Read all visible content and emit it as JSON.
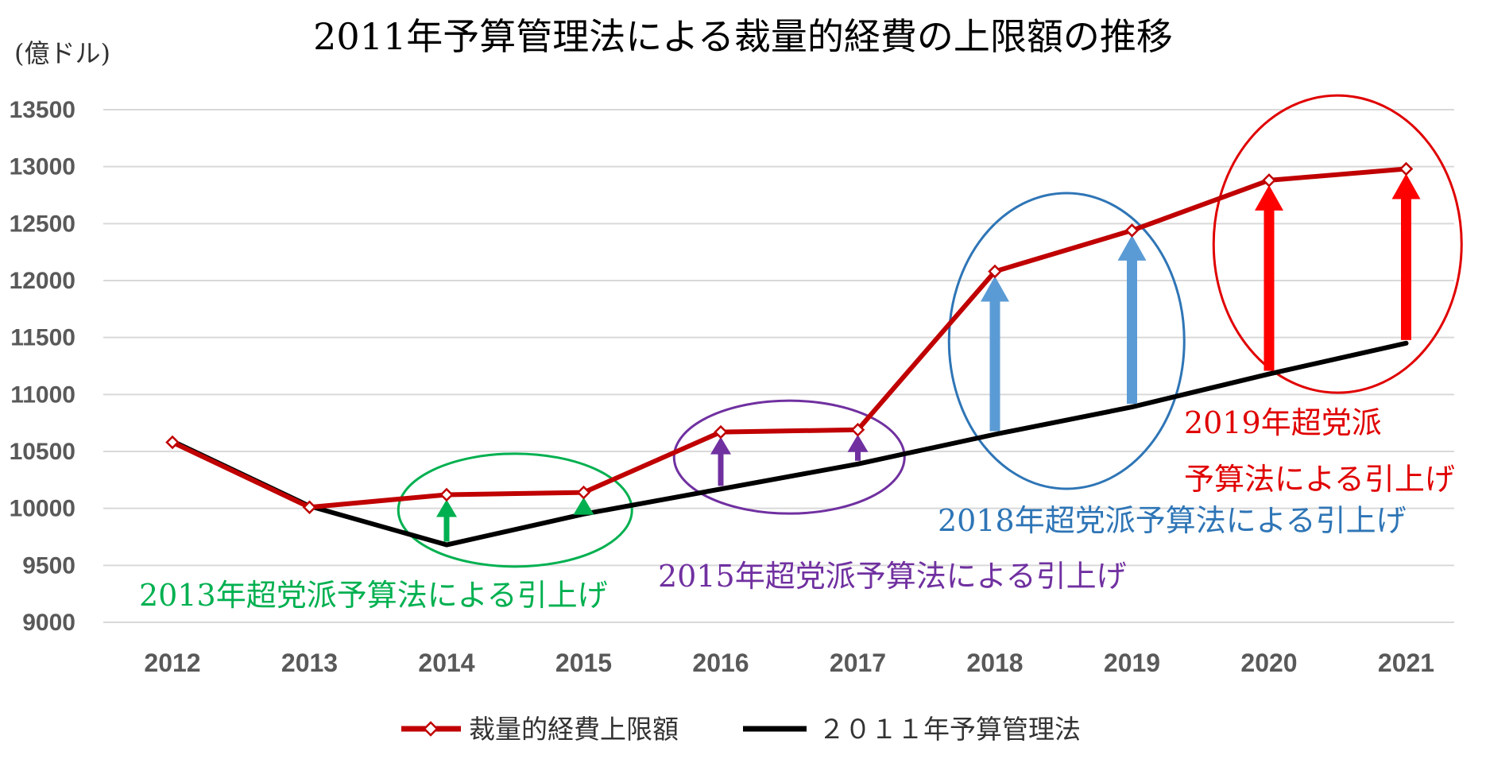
{
  "chart_data": {
    "type": "line",
    "title": "2011年予算管理法による裁量的経費の上限額の推移",
    "ylabel": "(億ドル)",
    "xlabel": "",
    "categories": [
      "2012",
      "2013",
      "2014",
      "2015",
      "2016",
      "2017",
      "2018",
      "2019",
      "2020",
      "2021"
    ],
    "ylim": [
      9000,
      13500
    ],
    "yticks": [
      9000,
      9500,
      10000,
      10500,
      11000,
      11500,
      12000,
      12500,
      13000,
      13500
    ],
    "grid": true,
    "legend_position": "bottom",
    "series": [
      {
        "name": "裁量的経費上限額",
        "color": "#c00000",
        "marker": "diamond",
        "values": [
          10580,
          10010,
          10120,
          10140,
          10670,
          10690,
          12080,
          12440,
          12880,
          12980
        ]
      },
      {
        "name": "２０１１年予算管理法",
        "color": "#000000",
        "marker": "none",
        "values": [
          10590,
          10020,
          9680,
          9950,
          10170,
          10390,
          10650,
          10890,
          11180,
          11450
        ]
      }
    ],
    "annotations": [
      {
        "id": "ann-2013",
        "label": "2013年超党派予算法による引上げ",
        "color": "#00b050",
        "arrow_color": "#00b050",
        "years": [
          "2014",
          "2015"
        ]
      },
      {
        "id": "ann-2015",
        "label": "2015年超党派予算法による引上げ",
        "color": "#7030a0",
        "arrow_color": "#7030a0",
        "years": [
          "2016",
          "2017"
        ]
      },
      {
        "id": "ann-2018",
        "label": "2018年超党派予算法による引上げ",
        "color": "#2e75b6",
        "arrow_color": "#5b9bd5",
        "years": [
          "2018",
          "2019"
        ]
      },
      {
        "id": "ann-2019",
        "label_line1": "2019年超党派",
        "label_line2": "予算法による引上げ",
        "color": "#e00000",
        "arrow_color": "#ff0000",
        "years": [
          "2020",
          "2021"
        ]
      }
    ]
  }
}
